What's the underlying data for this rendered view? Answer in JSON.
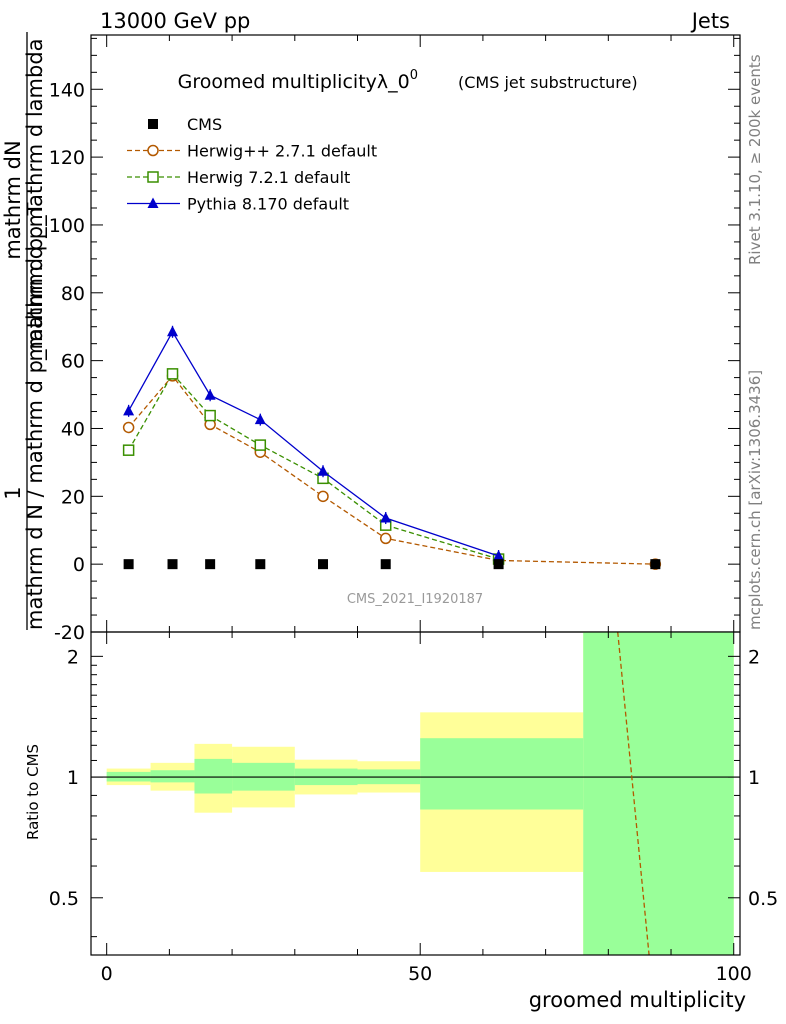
{
  "header": {
    "left": "13000 GeV pp",
    "right": "Jets"
  },
  "side_labels": {
    "rivet": "Rivet 3.1.10, ≥ 200k events",
    "mcplots": "mcplots.cern.ch [arXiv:1306.3436]"
  },
  "watermark": "CMS_2021_I1920187",
  "colors": {
    "herwigpp": "#b35900",
    "herwig7": "#3a8f00",
    "pythia": "#0000cc",
    "cms": "#000000",
    "band_inner": "#99ff99",
    "band_outer": "#ffff99"
  },
  "chart_data": [
    {
      "type": "line",
      "title": "Groomed multiplicityλ_0",
      "title_superscript": "0",
      "subtitle": "(CMS jet substructure)",
      "ylabel_numerator": "1",
      "ylabel_line1": "mathrm dN",
      "ylabel_line2": "mathrm d p_mathrm d lambda",
      "ylabel_denominator": "mathrm d N / mathrm d p_mathrm d p_T",
      "xlim": [
        -2.5,
        101
      ],
      "ylim": [
        -20,
        156
      ],
      "yticks": [
        -20,
        0,
        20,
        40,
        60,
        80,
        100,
        120,
        140
      ],
      "series": [
        {
          "name": "CMS",
          "marker": "square",
          "x": [
            3.5,
            10.5,
            16.5,
            24.5,
            34.5,
            44.5,
            62.5,
            87.5
          ],
          "y": [
            0,
            0,
            0,
            0,
            0,
            0,
            0,
            0
          ]
        },
        {
          "name": "Herwig++ 2.7.1 default",
          "marker": "circle",
          "x": [
            3.5,
            10.5,
            16.5,
            24.5,
            34.5,
            44.5,
            62.5,
            87.5
          ],
          "y": [
            40.3,
            55.5,
            41.2,
            33.0,
            20.0,
            7.6,
            1.1,
            0.0
          ]
        },
        {
          "name": "Herwig 7.2.1 default",
          "marker": "open-square",
          "x": [
            3.5,
            10.5,
            16.5,
            24.5,
            34.5,
            44.5,
            62.5
          ],
          "y": [
            33.6,
            56.1,
            43.8,
            35.1,
            25.3,
            11.5,
            1.5
          ]
        },
        {
          "name": "Pythia 8.170 default",
          "marker": "triangle",
          "x": [
            3.5,
            10.5,
            16.5,
            24.5,
            34.5,
            44.5,
            62.5
          ],
          "y": [
            45.2,
            68.5,
            49.8,
            42.6,
            27.4,
            13.6,
            2.4
          ]
        }
      ]
    },
    {
      "type": "area",
      "ylabel": "Ratio to CMS",
      "xlabel": "groomed multiplicity",
      "xlim": [
        -2.5,
        101
      ],
      "ylim": [
        0.36,
        2.3
      ],
      "yticks": [
        0.5,
        1,
        2
      ],
      "xticks": [
        0,
        50,
        100
      ],
      "reference_line": 1,
      "bins": [
        {
          "lo": 0,
          "hi": 7,
          "inner": [
            0.975,
            1.03
          ],
          "outer": [
            0.955,
            1.05
          ]
        },
        {
          "lo": 7,
          "hi": 14,
          "inner": [
            0.97,
            1.04
          ],
          "outer": [
            0.925,
            1.085
          ]
        },
        {
          "lo": 14,
          "hi": 20,
          "inner": [
            0.91,
            1.11
          ],
          "outer": [
            0.815,
            1.21
          ]
        },
        {
          "lo": 20,
          "hi": 30,
          "inner": [
            0.925,
            1.085
          ],
          "outer": [
            0.84,
            1.19
          ]
        },
        {
          "lo": 30,
          "hi": 40,
          "inner": [
            0.955,
            1.05
          ],
          "outer": [
            0.905,
            1.105
          ]
        },
        {
          "lo": 40,
          "hi": 50,
          "inner": [
            0.96,
            1.045
          ],
          "outer": [
            0.915,
            1.095
          ]
        },
        {
          "lo": 50,
          "hi": 76,
          "inner": [
            0.83,
            1.25
          ],
          "outer": [
            0.58,
            1.45
          ]
        },
        {
          "lo": 76,
          "hi": 100,
          "inner": [
            0.36,
            2.3
          ],
          "outer": [
            0.36,
            2.3
          ]
        }
      ],
      "series": [
        {
          "name": "Herwig++ 2.7.1 default",
          "x": [
            81.5,
            86.5
          ],
          "y": [
            2.3,
            0.36
          ]
        }
      ]
    }
  ]
}
